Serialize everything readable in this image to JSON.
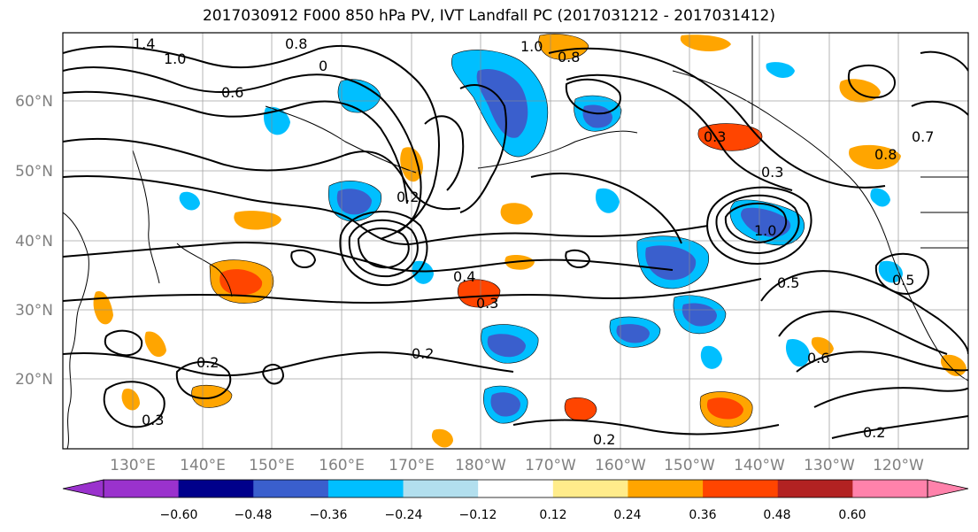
{
  "title": "2017030912 F000 850 hPa PV, IVT Landfall PC (2017031212 - 2017031412)",
  "latitude_labels": [
    "60°N",
    "50°N",
    "40°N",
    "30°N",
    "20°N"
  ],
  "longitude_labels": [
    "130°E",
    "140°E",
    "150°E",
    "160°E",
    "170°E",
    "180°W",
    "170°W",
    "160°W",
    "150°W",
    "140°W",
    "130°W",
    "120°W"
  ],
  "contour_labels": [
    "1.4",
    "1.0",
    "0.8",
    "0.6",
    "0",
    "1.0",
    "0.8",
    "0.3",
    "0.2",
    "0.4",
    "0.3",
    "0.2",
    "0.2",
    "0.3",
    "0.2",
    "0.3",
    "0.5",
    "0.6",
    "0.2",
    "0.8",
    "1.0",
    "0.5",
    "0.7"
  ],
  "colorbar": {
    "ticks": [
      "−0.60",
      "−0.48",
      "−0.36",
      "−0.24",
      "−0.12",
      "0.12",
      "0.24",
      "0.36",
      "0.48",
      "0.60"
    ],
    "colors": [
      "#9a32cd",
      "#00008b",
      "#3a5fcd",
      "#00bfff",
      "#b2dfee",
      "#ffffff",
      "#ffec8b",
      "#ffa500",
      "#ff4500",
      "#b22222",
      "#ff82ab"
    ]
  }
}
